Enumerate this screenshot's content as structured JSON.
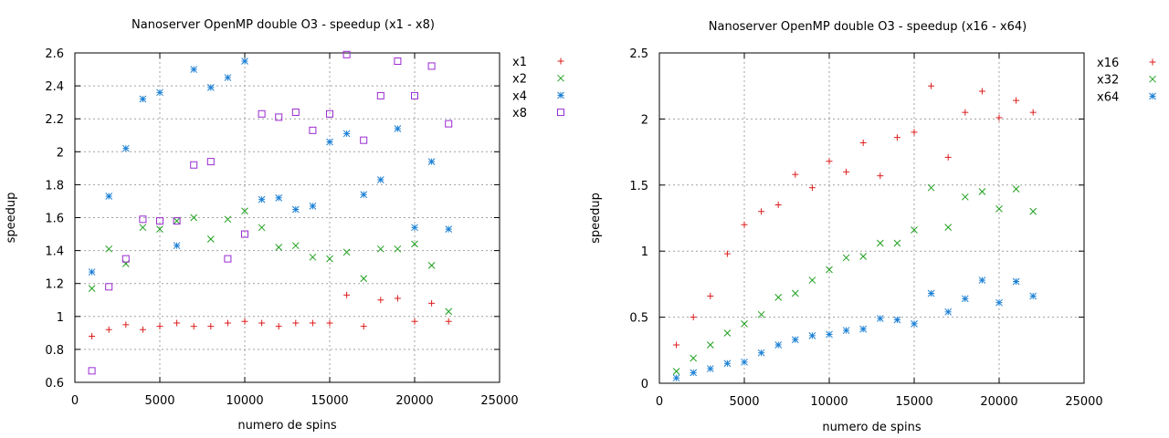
{
  "chart_data": [
    {
      "type": "scatter",
      "title": "Nanoserver OpenMP double O3 - speedup (x1 - x8)",
      "xlabel": "numero de spins",
      "ylabel": "speedup",
      "xlim": [
        0,
        25000
      ],
      "ylim": [
        0.6,
        2.6
      ],
      "xticks": [
        0,
        5000,
        10000,
        15000,
        20000,
        25000
      ],
      "yticks": [
        0.6,
        0.8,
        1,
        1.2,
        1.4,
        1.6,
        1.8,
        2,
        2.2,
        2.4,
        2.6
      ],
      "grid": true,
      "legend": "top-right outside",
      "x": [
        1000,
        2000,
        3000,
        4000,
        5000,
        6000,
        7000,
        8000,
        9000,
        10000,
        11000,
        12000,
        13000,
        14000,
        15000,
        16000,
        17000,
        18000,
        19000,
        20000,
        21000,
        22000
      ],
      "series": [
        {
          "name": "x1",
          "marker": "plus",
          "color": "#dd1c1c",
          "values": [
            0.88,
            0.92,
            0.95,
            0.92,
            0.94,
            0.96,
            0.94,
            0.94,
            0.96,
            0.97,
            0.96,
            0.94,
            0.96,
            0.96,
            0.96,
            1.13,
            0.94,
            1.1,
            1.11,
            0.97,
            1.08,
            0.97
          ]
        },
        {
          "name": "x2",
          "marker": "cross",
          "color": "#1fa01f",
          "values": [
            1.17,
            1.41,
            1.32,
            1.54,
            1.53,
            1.58,
            1.6,
            1.47,
            1.59,
            1.64,
            1.54,
            1.42,
            1.43,
            1.36,
            1.35,
            1.39,
            1.23,
            1.41,
            1.41,
            1.44,
            1.31,
            1.03
          ]
        },
        {
          "name": "x4",
          "marker": "star",
          "color": "#1a7fd4",
          "values": [
            1.27,
            1.73,
            2.02,
            2.32,
            2.36,
            1.43,
            2.5,
            2.39,
            2.45,
            2.55,
            1.71,
            1.72,
            1.65,
            1.67,
            2.06,
            2.11,
            1.74,
            1.83,
            2.14,
            1.54,
            1.94,
            1.53
          ]
        },
        {
          "name": "x8",
          "marker": "square",
          "color": "#9a2ad1",
          "values": [
            0.67,
            1.18,
            1.35,
            1.59,
            1.58,
            1.58,
            1.92,
            1.94,
            1.35,
            1.5,
            2.23,
            2.21,
            2.24,
            2.13,
            2.23,
            2.59,
            2.07,
            2.34,
            2.55,
            2.34,
            2.52,
            2.17
          ]
        }
      ]
    },
    {
      "type": "scatter",
      "title": "Nanoserver OpenMP double O3 - speedup (x16 - x64)",
      "xlabel": "numero de spins",
      "ylabel": "speedup",
      "xlim": [
        0,
        25000
      ],
      "ylim": [
        0,
        2.5
      ],
      "xticks": [
        0,
        5000,
        10000,
        15000,
        20000,
        25000
      ],
      "yticks": [
        0,
        0.5,
        1,
        1.5,
        2,
        2.5
      ],
      "grid": true,
      "legend": "top-right outside",
      "x": [
        1000,
        2000,
        3000,
        4000,
        5000,
        6000,
        7000,
        8000,
        9000,
        10000,
        11000,
        12000,
        13000,
        14000,
        15000,
        16000,
        17000,
        18000,
        19000,
        20000,
        21000,
        22000
      ],
      "series": [
        {
          "name": "x16",
          "marker": "plus",
          "color": "#dd1c1c",
          "values": [
            0.29,
            0.5,
            0.66,
            0.98,
            1.2,
            1.3,
            1.35,
            1.58,
            1.48,
            1.68,
            1.6,
            1.82,
            1.57,
            1.86,
            1.9,
            2.25,
            1.71,
            2.05,
            2.21,
            2.01,
            2.14,
            2.05
          ]
        },
        {
          "name": "x32",
          "marker": "cross",
          "color": "#1fa01f",
          "values": [
            0.09,
            0.19,
            0.29,
            0.38,
            0.45,
            0.52,
            0.65,
            0.68,
            0.78,
            0.86,
            0.95,
            0.96,
            1.06,
            1.06,
            1.16,
            1.48,
            1.18,
            1.41,
            1.45,
            1.32,
            1.47,
            1.3
          ]
        },
        {
          "name": "x64",
          "marker": "star",
          "color": "#1a7fd4",
          "values": [
            0.04,
            0.08,
            0.11,
            0.15,
            0.16,
            0.23,
            0.29,
            0.33,
            0.36,
            0.37,
            0.4,
            0.41,
            0.49,
            0.48,
            0.45,
            0.68,
            0.54,
            0.64,
            0.78,
            0.61,
            0.77,
            0.66
          ]
        }
      ]
    }
  ]
}
